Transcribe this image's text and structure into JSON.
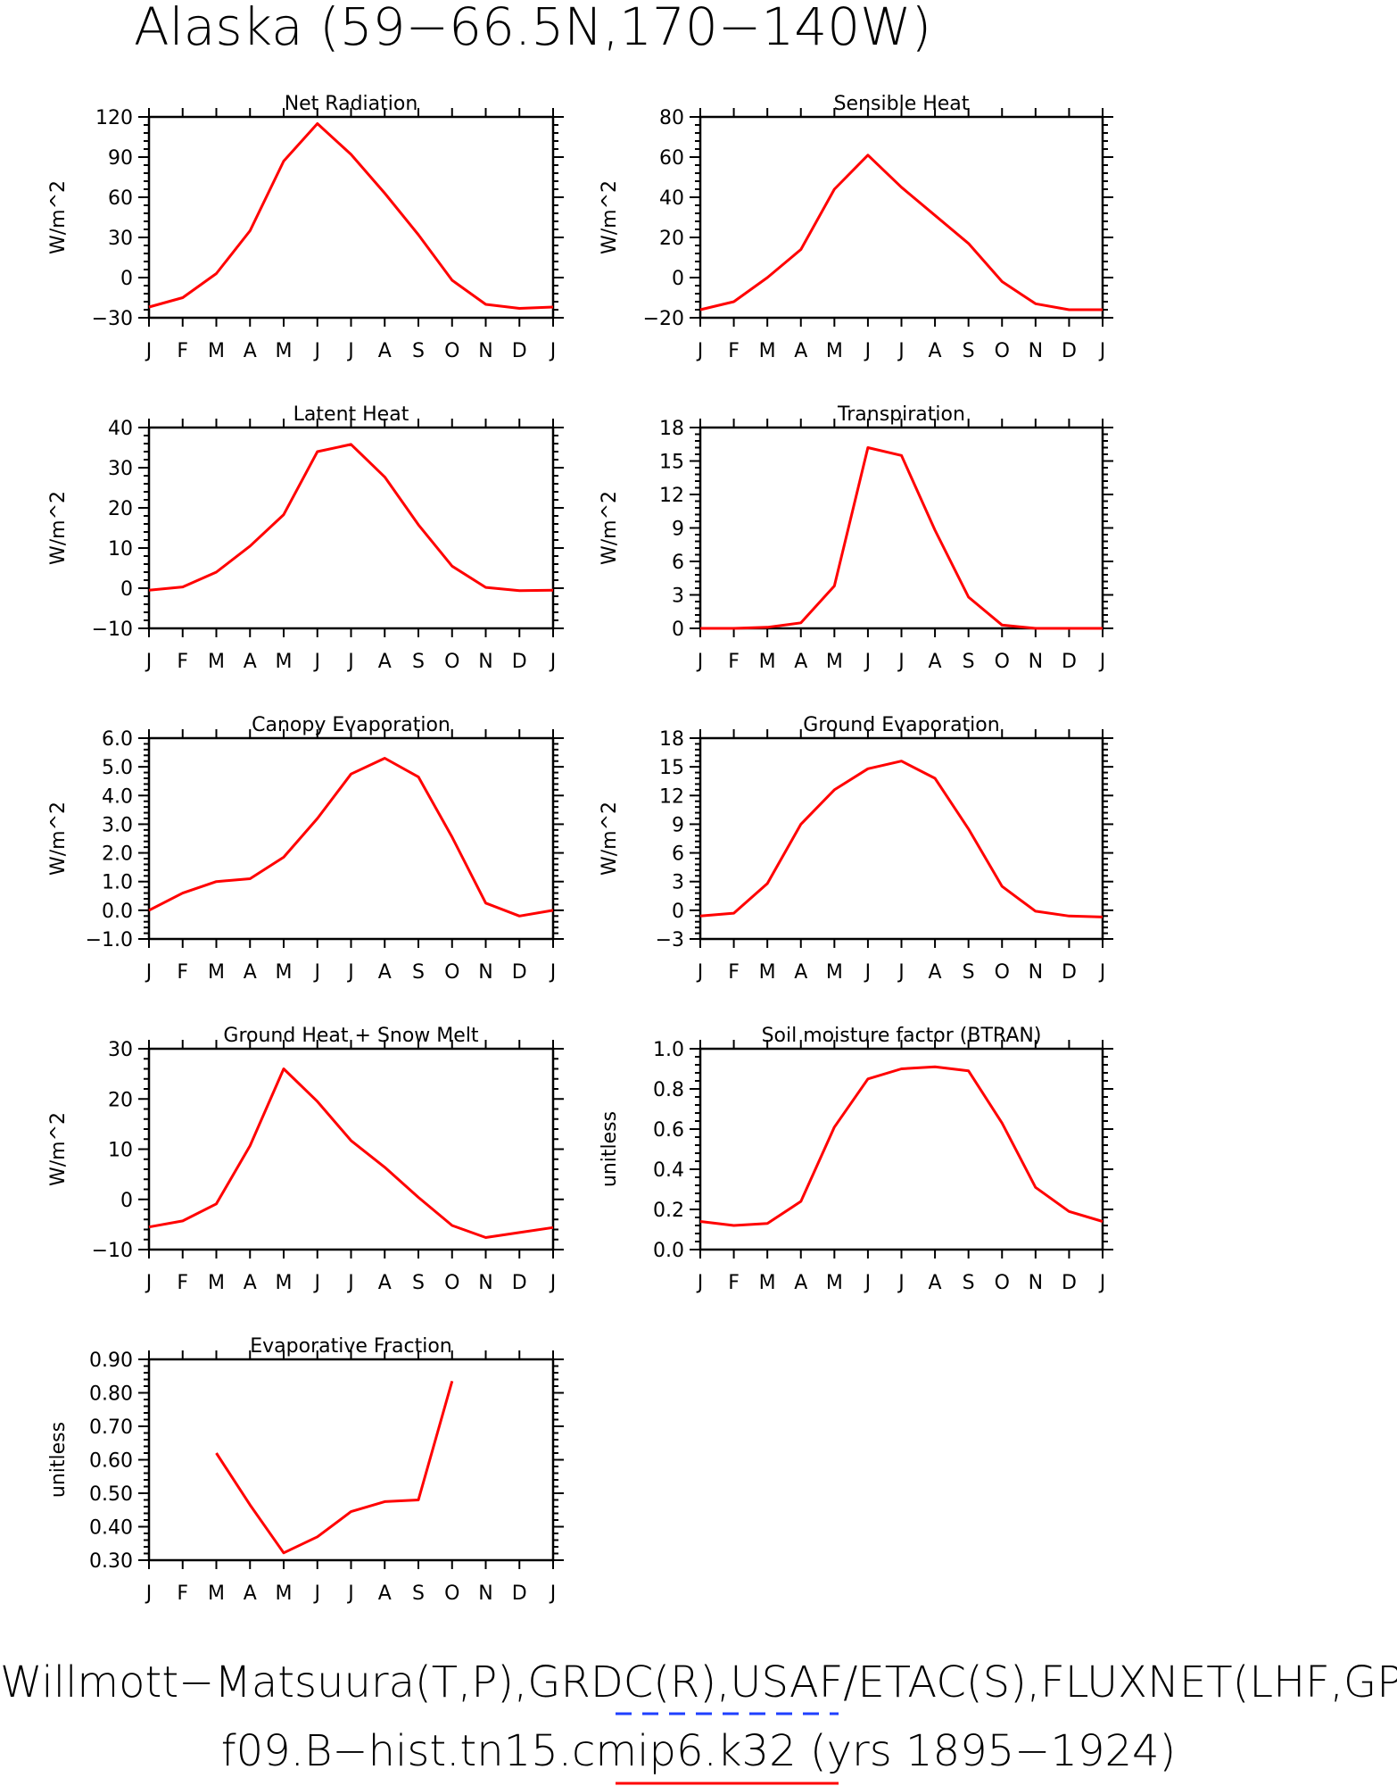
{
  "figure": {
    "title": "Alaska (59−66.5N,170−140W)",
    "footer_line1": "Willmott−Matsuura(T,P),GRDC(R),USAF/ETAC(S),FLUXNET(LHF,GPP)",
    "footer_line2": "f09.B−hist.tn15.cmip6.k32 (yrs 1895−1924)",
    "legend_colors": {
      "observations": "#1f3fff",
      "model": "#ff0000"
    }
  },
  "chart_data": [
    {
      "type": "line",
      "title": "Net Radiation",
      "ylabel": "W/m^2",
      "categories": [
        "J",
        "F",
        "M",
        "A",
        "M",
        "J",
        "J",
        "A",
        "S",
        "O",
        "N",
        "D",
        "J"
      ],
      "yticks": [
        -30,
        0,
        30,
        60,
        90,
        120
      ],
      "ytick_labels": [
        "−30",
        "0",
        "30",
        "60",
        "90",
        "120"
      ],
      "ylim": [
        -30,
        120
      ],
      "series": [
        {
          "color": "#ff0000",
          "values": [
            -22,
            -15,
            3,
            35,
            87,
            115,
            92,
            63,
            32,
            -2,
            -20,
            -23,
            -22
          ]
        }
      ]
    },
    {
      "type": "line",
      "title": "Sensible Heat",
      "ylabel": "W/m^2",
      "categories": [
        "J",
        "F",
        "M",
        "A",
        "M",
        "J",
        "J",
        "A",
        "S",
        "O",
        "N",
        "D",
        "J"
      ],
      "yticks": [
        -20,
        0,
        20,
        40,
        60,
        80
      ],
      "ytick_labels": [
        "−20",
        "0",
        "20",
        "40",
        "60",
        "80"
      ],
      "ylim": [
        -20,
        80
      ],
      "series": [
        {
          "color": "#ff0000",
          "values": [
            -16,
            -12,
            0,
            14,
            44,
            61,
            45,
            31,
            17,
            -2,
            -13,
            -16,
            -16
          ]
        }
      ]
    },
    {
      "type": "line",
      "title": "Latent Heat",
      "ylabel": "W/m^2",
      "categories": [
        "J",
        "F",
        "M",
        "A",
        "M",
        "J",
        "J",
        "A",
        "S",
        "O",
        "N",
        "D",
        "J"
      ],
      "yticks": [
        -10,
        0,
        10,
        20,
        30,
        40
      ],
      "ytick_labels": [
        "−10",
        "0",
        "10",
        "20",
        "30",
        "40"
      ],
      "ylim": [
        -10,
        40
      ],
      "series": [
        {
          "color": "#ff0000",
          "values": [
            -0.5,
            0.3,
            4,
            10.5,
            18.3,
            34,
            35.8,
            27.7,
            15.8,
            5.5,
            0.2,
            -0.6,
            -0.5
          ]
        }
      ]
    },
    {
      "type": "line",
      "title": "Transpiration",
      "ylabel": "W/m^2",
      "categories": [
        "J",
        "F",
        "M",
        "A",
        "M",
        "J",
        "J",
        "A",
        "S",
        "O",
        "N",
        "D",
        "J"
      ],
      "yticks": [
        0,
        3,
        6,
        9,
        12,
        15,
        18
      ],
      "ytick_labels": [
        "0",
        "3",
        "6",
        "9",
        "12",
        "15",
        "18"
      ],
      "ylim": [
        0,
        18
      ],
      "series": [
        {
          "color": "#ff0000",
          "values": [
            0,
            0,
            0.1,
            0.5,
            3.8,
            16.2,
            15.5,
            8.8,
            2.8,
            0.3,
            0,
            0,
            0
          ]
        }
      ]
    },
    {
      "type": "line",
      "title": "Canopy Evaporation",
      "ylabel": "W/m^2",
      "categories": [
        "J",
        "F",
        "M",
        "A",
        "M",
        "J",
        "J",
        "A",
        "S",
        "O",
        "N",
        "D",
        "J"
      ],
      "yticks": [
        -1,
        0,
        1,
        2,
        3,
        4,
        5,
        6
      ],
      "ytick_labels": [
        "−1.0",
        "0.0",
        "1.0",
        "2.0",
        "3.0",
        "4.0",
        "5.0",
        "6.0"
      ],
      "ylim": [
        -1,
        6
      ],
      "series": [
        {
          "color": "#ff0000",
          "values": [
            0,
            0.6,
            1,
            1.1,
            1.85,
            3.2,
            4.75,
            5.3,
            4.65,
            2.55,
            0.25,
            -0.2,
            0
          ]
        }
      ]
    },
    {
      "type": "line",
      "title": "Ground Evaporation",
      "ylabel": "W/m^2",
      "categories": [
        "J",
        "F",
        "M",
        "A",
        "M",
        "J",
        "J",
        "A",
        "S",
        "O",
        "N",
        "D",
        "J"
      ],
      "yticks": [
        -3,
        0,
        3,
        6,
        9,
        12,
        15,
        18
      ],
      "ytick_labels": [
        "−3",
        "0",
        "3",
        "6",
        "9",
        "12",
        "15",
        "18"
      ],
      "ylim": [
        -3,
        18
      ],
      "series": [
        {
          "color": "#ff0000",
          "values": [
            -0.6,
            -0.3,
            2.8,
            9,
            12.6,
            14.8,
            15.6,
            13.8,
            8.5,
            2.5,
            -0.1,
            -0.6,
            -0.7
          ]
        }
      ]
    },
    {
      "type": "line",
      "title": "Ground Heat + Snow Melt",
      "ylabel": "W/m^2",
      "categories": [
        "J",
        "F",
        "M",
        "A",
        "M",
        "J",
        "J",
        "A",
        "S",
        "O",
        "N",
        "D",
        "J"
      ],
      "yticks": [
        -10,
        0,
        10,
        20,
        30
      ],
      "ytick_labels": [
        "−10",
        "0",
        "10",
        "20",
        "30"
      ],
      "ylim": [
        -10,
        30
      ],
      "series": [
        {
          "color": "#ff0000",
          "values": [
            -5.5,
            -4.3,
            -0.9,
            10.7,
            26,
            19.5,
            11.7,
            6.4,
            0.4,
            -5.2,
            -7.6,
            -6.6,
            -5.6
          ]
        }
      ]
    },
    {
      "type": "line",
      "title": "Soil moisture factor (BTRAN)",
      "ylabel": "unitless",
      "categories": [
        "J",
        "F",
        "M",
        "A",
        "M",
        "J",
        "J",
        "A",
        "S",
        "O",
        "N",
        "D",
        "J"
      ],
      "yticks": [
        0,
        0.2,
        0.4,
        0.6,
        0.8,
        1.0
      ],
      "ytick_labels": [
        "0.0",
        "0.2",
        "0.4",
        "0.6",
        "0.8",
        "1.0"
      ],
      "ylim": [
        0,
        1
      ],
      "series": [
        {
          "color": "#ff0000",
          "values": [
            0.14,
            0.12,
            0.13,
            0.24,
            0.61,
            0.85,
            0.9,
            0.91,
            0.89,
            0.63,
            0.31,
            0.19,
            0.14
          ]
        }
      ]
    },
    {
      "type": "line",
      "title": "Evaporative Fraction",
      "ylabel": "unitless",
      "categories": [
        "J",
        "F",
        "M",
        "A",
        "M",
        "J",
        "J",
        "A",
        "S",
        "O",
        "N",
        "D",
        "J"
      ],
      "yticks": [
        0.3,
        0.4,
        0.5,
        0.6,
        0.7,
        0.8,
        0.9
      ],
      "ytick_labels": [
        "0.30",
        "0.40",
        "0.50",
        "0.60",
        "0.70",
        "0.80",
        "0.90"
      ],
      "ylim": [
        0.3,
        0.9
      ],
      "series": [
        {
          "color": "#ff0000",
          "values": [
            null,
            null,
            0.62,
            0.465,
            0.322,
            0.37,
            0.445,
            0.475,
            0.48,
            0.835,
            null,
            null,
            null
          ]
        }
      ]
    }
  ]
}
